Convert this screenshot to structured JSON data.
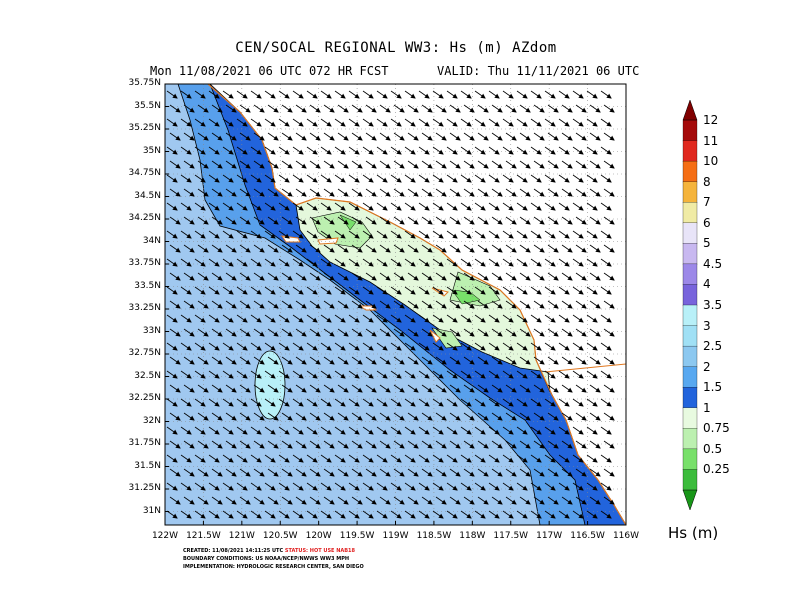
{
  "header": {
    "title": "CEN/SOCAL REGIONAL WW3: Hs (m) AZdom",
    "line_left": "Mon 11/08/2021 06 UTC 072 HR FCST",
    "line_right": "VALID: Thu 11/11/2021 06 UTC"
  },
  "axes": {
    "lat_labels": [
      "35.75N",
      "35.5N",
      "35.25N",
      "35N",
      "34.75N",
      "34.5N",
      "34.25N",
      "34N",
      "33.75N",
      "33.5N",
      "33.25N",
      "33N",
      "32.75N",
      "32.5N",
      "32.25N",
      "32N",
      "31.75N",
      "31.5N",
      "31.25N",
      "31N"
    ],
    "lat_values": [
      35.75,
      35.5,
      35.25,
      35,
      34.75,
      34.5,
      34.25,
      34,
      33.75,
      33.5,
      33.25,
      33,
      32.75,
      32.5,
      32.25,
      32,
      31.75,
      31.5,
      31.25,
      31
    ],
    "lon_labels": [
      "122W",
      "121.5W",
      "121W",
      "120.5W",
      "120W",
      "119.5W",
      "119W",
      "118.5W",
      "118W",
      "117.5W",
      "117W",
      "116.5W",
      "116W"
    ],
    "lon_values": [
      -122,
      -121.5,
      -121,
      -120.5,
      -120,
      -119.5,
      -119,
      -118.5,
      -118,
      -117.5,
      -117,
      -116.5,
      -116
    ],
    "lon_range": [
      -122,
      -116
    ],
    "lat_range": [
      30.85,
      35.75
    ],
    "grid": true
  },
  "colorbar": {
    "labels": [
      "12",
      "11",
      "10",
      "8",
      "7",
      "6",
      "5",
      "4.5",
      "4",
      "3.5",
      "3",
      "2.5",
      "2",
      "1.5",
      "1",
      "0.75",
      "0.5",
      "0.25"
    ],
    "colors": [
      "#a50a0a",
      "#e0281e",
      "#f56e14",
      "#f5b43c",
      "#f0eba5",
      "#e8e4f8",
      "#c8b8f0",
      "#9c88e8",
      "#7864dc",
      "#b8f0f8",
      "#a0e0f5",
      "#8cc8f0",
      "#58a8f0",
      "#2264dc",
      "#e8fae0",
      "#bcf0b0",
      "#78e06a",
      "#3cbc3c"
    ],
    "units_label": "Hs (m)"
  },
  "footer": {
    "created_prefix": "CREATED: 11/08/2021 14:11:25 UTC",
    "status": "STATUS: HOT USE NAB18",
    "boundary": "BOUNDARY CONDITIONS: US NOAA/NCEP/NWWS WW3 MPH",
    "implementation": "IMPLEMENTATION: HYDROLOGIC RESEARCH CENTER, SAN DIEGO"
  }
}
